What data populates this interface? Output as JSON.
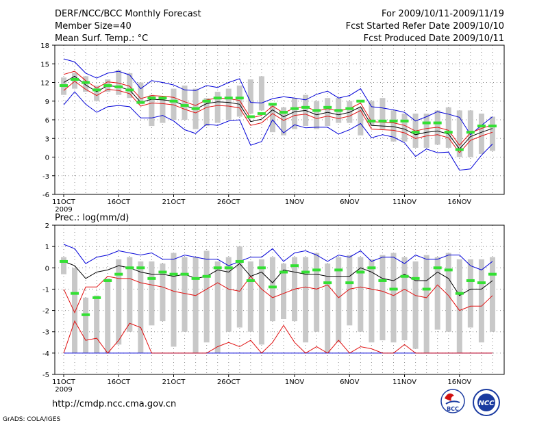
{
  "header": {
    "title": "DERF/NCC/BCC Monthly Forecast",
    "member_size": "Member Size=40",
    "variable": "Mean Surf. Temp.: °C",
    "period": "For 2009/10/11-2009/11/19",
    "started": "Fcst Started Refer Date 2009/10/10",
    "produced": "Fcst Produced Date 2009/10/11"
  },
  "footer": {
    "url": "http://cmdp.ncc.cma.gov.cn",
    "grads": "GrADS: COLA/IGES",
    "logo_bcc": "BCC",
    "logo_ncc": "NCC"
  },
  "x_axis": {
    "tick_labels": [
      "11OCT",
      "16OCT",
      "21OCT",
      "26OCT",
      "1NOV",
      "6NOV",
      "11NOV",
      "16NOV"
    ],
    "year_label": "2009"
  },
  "colors": {
    "box": "#c8c8c8",
    "green": "#33e033",
    "red": "#e01010",
    "blue": "#0000d8",
    "black": "#000000",
    "grid": "#888888"
  },
  "chart_data": [
    {
      "type": "line",
      "title": "Mean Surf. Temp.: °C",
      "ylim": [
        -6,
        18
      ],
      "yticks": [
        -6,
        -3,
        0,
        3,
        6,
        9,
        12,
        15,
        18
      ],
      "x_start": "2009-10-11",
      "days": 40,
      "series": {
        "box_top": [
          12.8,
          13.5,
          13.0,
          11.5,
          12.5,
          14.0,
          13.5,
          12.0,
          10.0,
          9.5,
          11.0,
          11.5,
          11.0,
          9.5,
          10.5,
          11.0,
          11.5,
          12.5,
          13.0,
          8.5,
          8.0,
          9.5,
          10.0,
          9.0,
          9.5,
          9.5,
          9.0,
          8.0,
          9.0,
          9.5,
          7.5,
          7.0,
          7.0,
          7.0,
          7.5,
          8.0,
          7.5,
          7.5,
          7.0,
          6.5
        ],
        "box_bottom": [
          10.0,
          11.0,
          10.5,
          9.0,
          10.5,
          10.0,
          9.5,
          8.5,
          5.0,
          5.5,
          6.0,
          6.0,
          4.5,
          5.0,
          5.5,
          6.0,
          6.5,
          7.0,
          7.5,
          4.0,
          3.5,
          4.5,
          5.0,
          4.5,
          5.0,
          5.5,
          5.5,
          3.5,
          5.0,
          4.5,
          2.5,
          2.5,
          1.5,
          1.5,
          2.0,
          1.5,
          0.0,
          0.0,
          0.5,
          1.0
        ],
        "ens_max": [
          15.8,
          15.3,
          13.5,
          12.7,
          13.5,
          13.8,
          13.2,
          11.0,
          12.3,
          12.0,
          11.6,
          10.8,
          10.7,
          11.5,
          11.2,
          12.0,
          12.6,
          8.8,
          8.7,
          9.4,
          9.7,
          9.5,
          9.2,
          10.1,
          10.6,
          9.5,
          9.9,
          11.0,
          8.1,
          7.9,
          7.6,
          7.2,
          5.8,
          6.5,
          7.3,
          6.9,
          6.4,
          3.6,
          5.1,
          6.5
        ],
        "ens_min": [
          8.4,
          10.5,
          8.5,
          7.2,
          8.1,
          8.3,
          8.1,
          6.3,
          6.3,
          6.7,
          5.8,
          4.4,
          3.8,
          5.3,
          5.1,
          5.8,
          6.0,
          1.9,
          2.5,
          6.0,
          3.9,
          5.2,
          4.7,
          4.8,
          4.8,
          3.7,
          4.4,
          5.4,
          3.1,
          3.6,
          3.2,
          2.3,
          0.1,
          1.3,
          0.7,
          0.8,
          -2.1,
          -1.9,
          0.3,
          2.1
        ],
        "ens_mean": [
          12.0,
          13.0,
          11.6,
          10.5,
          11.5,
          11.3,
          10.8,
          8.8,
          9.3,
          9.2,
          9.0,
          8.3,
          7.7,
          8.6,
          8.9,
          8.8,
          8.5,
          5.7,
          6.1,
          7.6,
          6.5,
          7.3,
          7.5,
          6.8,
          7.2,
          6.8,
          7.2,
          8.1,
          5.1,
          5.0,
          4.9,
          4.5,
          3.6,
          4.0,
          4.2,
          3.7,
          1.3,
          3.3,
          4.0,
          4.6
        ],
        "upper": [
          13.3,
          13.8,
          12.3,
          11.1,
          12.1,
          11.9,
          11.4,
          9.4,
          9.9,
          9.8,
          9.6,
          8.9,
          8.3,
          9.2,
          9.5,
          9.4,
          9.1,
          6.3,
          6.7,
          8.2,
          7.1,
          7.9,
          8.1,
          7.4,
          7.8,
          7.4,
          7.8,
          8.7,
          5.7,
          5.6,
          5.5,
          5.1,
          4.2,
          4.6,
          4.8,
          4.3,
          1.9,
          3.9,
          4.6,
          5.2
        ],
        "lower": [
          10.7,
          12.2,
          10.9,
          9.9,
          10.9,
          10.7,
          10.2,
          8.2,
          8.7,
          8.6,
          8.4,
          7.7,
          7.1,
          8.0,
          8.3,
          8.2,
          7.9,
          5.1,
          5.5,
          7.0,
          5.9,
          6.7,
          6.9,
          6.2,
          6.6,
          6.2,
          6.6,
          7.5,
          4.5,
          4.4,
          4.3,
          3.9,
          3.0,
          3.4,
          3.6,
          3.1,
          0.7,
          2.7,
          3.4,
          4.0
        ],
        "green_mark": [
          11.5,
          12.5,
          12.0,
          10.8,
          11.5,
          11.3,
          10.8,
          8.8,
          9.5,
          9.5,
          9.0,
          8.3,
          7.8,
          9.0,
          9.5,
          9.5,
          9.5,
          6.5,
          7.0,
          8.5,
          7.2,
          7.8,
          8.0,
          7.5,
          8.0,
          7.5,
          7.8,
          9.0,
          5.8,
          5.8,
          5.8,
          5.8,
          4.0,
          5.5,
          5.5,
          4.0,
          1.2,
          4.0,
          5.0,
          5.0
        ]
      }
    },
    {
      "type": "line",
      "title": "Prec.: log(mm/d)",
      "ylim": [
        -5,
        2
      ],
      "yticks": [
        -5,
        -4,
        -3,
        -2,
        -1,
        0,
        1,
        2
      ],
      "x_start": "2009-10-11",
      "days": 40,
      "series": {
        "box_top": [
          0.5,
          0.0,
          -1.4,
          -1.3,
          -0.5,
          0.4,
          0.5,
          0.3,
          0.3,
          0.2,
          0.7,
          0.5,
          0.5,
          0.8,
          0.3,
          0.5,
          1.0,
          0.3,
          0.4,
          0.5,
          0.2,
          0.5,
          0.5,
          0.7,
          0.2,
          0.5,
          0.6,
          0.5,
          0.4,
          0.6,
          0.7,
          0.5,
          0.3,
          0.6,
          0.5,
          0.7,
          0.4,
          0.4,
          0.4,
          0.5
        ],
        "box_bottom": [
          -0.3,
          -4.0,
          -4.0,
          -4.0,
          -4.0,
          -3.6,
          -3.0,
          -4.0,
          -2.7,
          -2.5,
          -3.7,
          -3.0,
          -4.0,
          -3.5,
          -4.0,
          -3.0,
          -2.8,
          -3.0,
          -3.6,
          -2.5,
          -2.4,
          -2.5,
          -3.5,
          -3.0,
          -4.0,
          -3.5,
          -2.7,
          -3.0,
          -3.5,
          -3.4,
          -3.5,
          -3.4,
          -3.8,
          -4.0,
          -2.9,
          -3.0,
          -4.0,
          -2.8,
          -3.5,
          -3.0
        ],
        "ens_max": [
          1.1,
          0.9,
          0.2,
          0.5,
          0.6,
          0.8,
          0.7,
          0.6,
          0.7,
          0.4,
          0.4,
          0.6,
          0.5,
          0.4,
          0.4,
          0.1,
          0.3,
          0.5,
          0.5,
          0.9,
          0.3,
          0.7,
          0.8,
          0.6,
          0.3,
          0.6,
          0.5,
          0.8,
          0.3,
          0.5,
          0.5,
          0.2,
          0.6,
          0.4,
          0.4,
          0.6,
          0.6,
          0.1,
          -0.1,
          0.3
        ],
        "ens_mean": [
          0.3,
          0.1,
          -0.5,
          -0.2,
          -0.1,
          0.1,
          0.0,
          -0.2,
          -0.3,
          -0.3,
          -0.4,
          -0.3,
          -0.5,
          -0.4,
          -0.1,
          -0.2,
          0.2,
          -0.4,
          -0.2,
          -0.7,
          -0.1,
          -0.2,
          -0.3,
          -0.3,
          -0.4,
          -0.4,
          -0.4,
          0.0,
          -0.2,
          -0.5,
          -0.6,
          -0.3,
          -0.6,
          -0.6,
          -0.2,
          -0.5,
          -1.3,
          -1.0,
          -1.0,
          -0.6
        ],
        "red_upper": [
          -1.0,
          -2.1,
          -0.9,
          -0.9,
          -0.4,
          -0.5,
          -0.5,
          -0.7,
          -0.8,
          -0.9,
          -1.1,
          -1.2,
          -1.3,
          -1.0,
          -0.7,
          -1.0,
          -1.1,
          -0.4,
          -1.0,
          -1.4,
          -1.2,
          -1.0,
          -0.9,
          -1.0,
          -0.8,
          -1.4,
          -1.0,
          -0.9,
          -1.0,
          -1.1,
          -1.3,
          -1.0,
          -1.3,
          -1.4,
          -0.8,
          -1.3,
          -2.0,
          -1.8,
          -1.8,
          -1.3
        ],
        "red_lower": [
          -4.0,
          -2.5,
          -3.4,
          -3.3,
          -4.0,
          -3.4,
          -2.6,
          -2.8,
          -4.0,
          -4.0,
          -4.0,
          -4.0,
          -4.0,
          -4.0,
          -3.7,
          -3.5,
          -3.7,
          -3.4,
          -4.0,
          -3.5,
          -2.7,
          -3.5,
          -4.0,
          -3.7,
          -4.0,
          -3.4,
          -4.0,
          -3.7,
          -3.8,
          -4.0,
          -4.0,
          -3.6,
          -4.0,
          -4.0,
          -4.0,
          -4.0,
          -4.0,
          -4.0,
          -4.0,
          -4.0
        ],
        "ens_min": [
          -4.0,
          -4.0,
          -4.0,
          -4.0,
          -4.0,
          -4.0,
          -4.0,
          -4.0,
          -4.0,
          -4.0,
          -4.0,
          -4.0,
          -4.0,
          -4.0,
          -4.0,
          -4.0,
          -4.0,
          -4.0,
          -4.0,
          -4.0,
          -4.0,
          -4.0,
          -4.0,
          -4.0,
          -4.0,
          -4.0,
          -4.0,
          -4.0,
          -4.0,
          -4.0,
          -4.0,
          -4.0,
          -4.0,
          -4.0,
          -4.0,
          -4.0,
          -4.0,
          -4.0,
          -4.0,
          -4.0
        ],
        "green_mark": [
          0.3,
          -1.2,
          -2.2,
          -1.4,
          -0.6,
          -0.3,
          0.0,
          0.0,
          -0.5,
          -0.2,
          -0.3,
          -0.3,
          -0.5,
          -0.4,
          0.0,
          0.0,
          0.3,
          -0.6,
          0.0,
          -0.9,
          -0.2,
          0.1,
          -0.2,
          -0.1,
          -0.7,
          -0.1,
          -0.7,
          -0.2,
          0.0,
          -0.6,
          -1.0,
          -0.4,
          -0.5,
          -1.0,
          0.0,
          -0.1,
          -1.2,
          -0.6,
          -0.7,
          -0.3
        ]
      }
    }
  ]
}
